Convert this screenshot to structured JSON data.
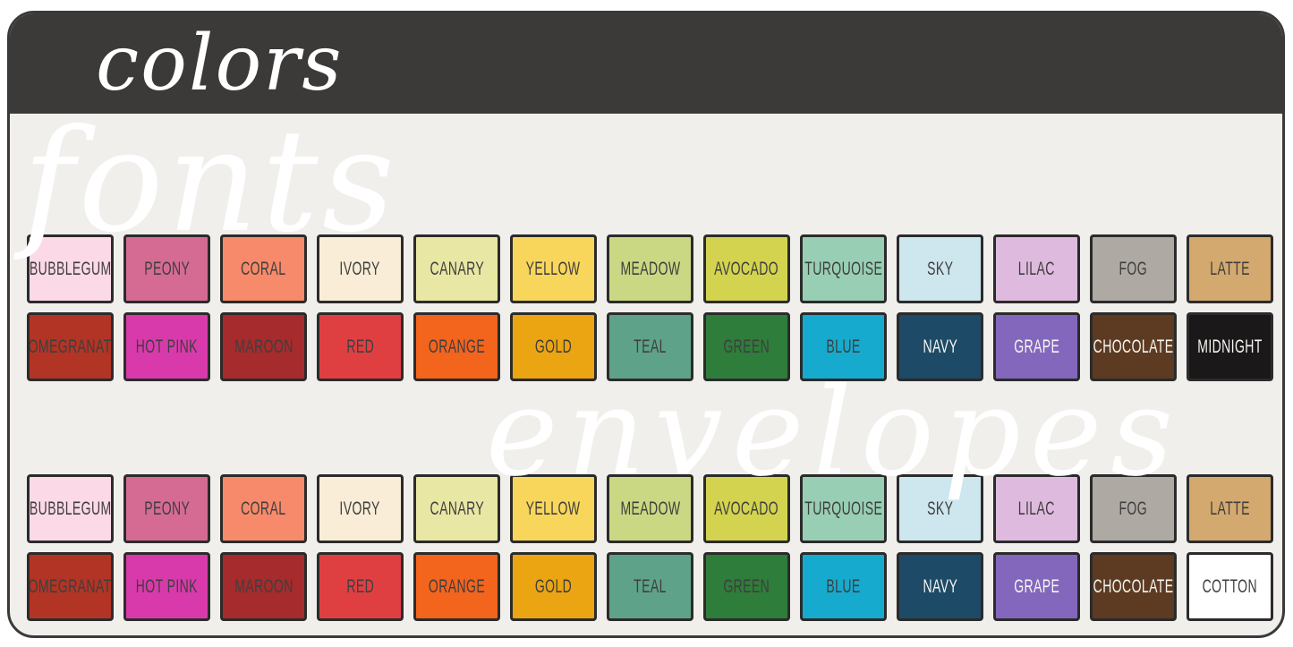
{
  "header": {
    "title": "colors"
  },
  "watermarks": {
    "fonts": "fonts",
    "envelopes": "envelopes"
  },
  "theme": {
    "page_background": "#ffffff",
    "card_background": "#f1efec",
    "header_background": "#3b3a39",
    "card_border": "#3a3a3a",
    "swatch_border": "#2b2b2b",
    "dark_label_color": "#3f3e3e",
    "light_label_color": "#f7f5f2",
    "watermark_color": "#ffffff"
  },
  "palette": {
    "groups": [
      {
        "rows": [
          {
            "swatches": [
              {
                "label": "BUBBLEGUM",
                "color": "#fbd9e7",
                "text": "dark"
              },
              {
                "label": "PEONY",
                "color": "#d56b93",
                "text": "dark"
              },
              {
                "label": "CORAL",
                "color": "#f68a6a",
                "text": "dark"
              },
              {
                "label": "IVORY",
                "color": "#f9edd7",
                "text": "dark"
              },
              {
                "label": "CANARY",
                "color": "#e9e7a4",
                "text": "dark"
              },
              {
                "label": "YELLOW",
                "color": "#f8d65c",
                "text": "dark"
              },
              {
                "label": "MEADOW",
                "color": "#cbd883",
                "text": "dark"
              },
              {
                "label": "AVOCADO",
                "color": "#d3d350",
                "text": "dark"
              },
              {
                "label": "TURQUOISE",
                "color": "#98cfb4",
                "text": "dark"
              },
              {
                "label": "SKY",
                "color": "#cee6ee",
                "text": "dark"
              },
              {
                "label": "LILAC",
                "color": "#debade",
                "text": "dark"
              },
              {
                "label": "FOG",
                "color": "#aea9a2",
                "text": "dark"
              },
              {
                "label": "LATTE",
                "color": "#d3a96f",
                "text": "dark"
              }
            ]
          },
          {
            "swatches": [
              {
                "label": "POMEGRANATE",
                "color": "#b23425",
                "text": "dark"
              },
              {
                "label": "HOT PINK",
                "color": "#d83aab",
                "text": "dark"
              },
              {
                "label": "MAROON",
                "color": "#a62b2c",
                "text": "dark"
              },
              {
                "label": "RED",
                "color": "#e03f42",
                "text": "dark"
              },
              {
                "label": "ORANGE",
                "color": "#f3641d",
                "text": "dark"
              },
              {
                "label": "GOLD",
                "color": "#eba512",
                "text": "dark"
              },
              {
                "label": "TEAL",
                "color": "#5ea389",
                "text": "dark"
              },
              {
                "label": "GREEN",
                "color": "#2e7d3a",
                "text": "dark"
              },
              {
                "label": "BLUE",
                "color": "#16abce",
                "text": "dark"
              },
              {
                "label": "NAVY",
                "color": "#1d4a66",
                "text": "light"
              },
              {
                "label": "GRAPE",
                "color": "#8367bd",
                "text": "light"
              },
              {
                "label": "CHOCOLATE",
                "color": "#5c3b22",
                "text": "light"
              },
              {
                "label": "MIDNIGHT",
                "color": "#1a1818",
                "text": "light"
              }
            ]
          }
        ]
      },
      {
        "rows": [
          {
            "swatches": [
              {
                "label": "BUBBLEGUM",
                "color": "#fbd9e7",
                "text": "dark"
              },
              {
                "label": "PEONY",
                "color": "#d56b93",
                "text": "dark"
              },
              {
                "label": "CORAL",
                "color": "#f68a6a",
                "text": "dark"
              },
              {
                "label": "IVORY",
                "color": "#f9edd7",
                "text": "dark"
              },
              {
                "label": "CANARY",
                "color": "#e9e7a4",
                "text": "dark"
              },
              {
                "label": "YELLOW",
                "color": "#f8d65c",
                "text": "dark"
              },
              {
                "label": "MEADOW",
                "color": "#cbd883",
                "text": "dark"
              },
              {
                "label": "AVOCADO",
                "color": "#d3d350",
                "text": "dark"
              },
              {
                "label": "TURQUOISE",
                "color": "#98cfb4",
                "text": "dark"
              },
              {
                "label": "SKY",
                "color": "#cee6ee",
                "text": "dark"
              },
              {
                "label": "LILAC",
                "color": "#debade",
                "text": "dark"
              },
              {
                "label": "FOG",
                "color": "#aea9a2",
                "text": "dark"
              },
              {
                "label": "LATTE",
                "color": "#d3a96f",
                "text": "dark"
              }
            ]
          },
          {
            "swatches": [
              {
                "label": "POMEGRANATE",
                "color": "#b23425",
                "text": "dark"
              },
              {
                "label": "HOT PINK",
                "color": "#d83aab",
                "text": "dark"
              },
              {
                "label": "MAROON",
                "color": "#a62b2c",
                "text": "dark"
              },
              {
                "label": "RED",
                "color": "#e03f42",
                "text": "dark"
              },
              {
                "label": "ORANGE",
                "color": "#f3641d",
                "text": "dark"
              },
              {
                "label": "GOLD",
                "color": "#eba512",
                "text": "dark"
              },
              {
                "label": "TEAL",
                "color": "#5ea389",
                "text": "dark"
              },
              {
                "label": "GREEN",
                "color": "#2e7d3a",
                "text": "dark"
              },
              {
                "label": "BLUE",
                "color": "#16abce",
                "text": "dark"
              },
              {
                "label": "NAVY",
                "color": "#1d4a66",
                "text": "light"
              },
              {
                "label": "GRAPE",
                "color": "#8367bd",
                "text": "light"
              },
              {
                "label": "CHOCOLATE",
                "color": "#5c3b22",
                "text": "light"
              },
              {
                "label": "COTTON",
                "color": "#ffffff",
                "text": "dark"
              }
            ]
          }
        ]
      }
    ]
  }
}
